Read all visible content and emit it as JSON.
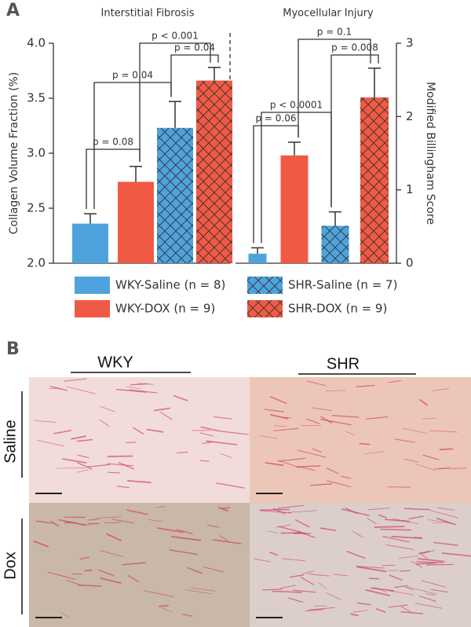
{
  "panel_labels": [
    "A",
    "B"
  ],
  "chart_data": [
    {
      "type": "bar",
      "title": "Interstitial Fibrosis",
      "y_label": "Collagen Volume Fraction (%)",
      "axis_side": "left",
      "categories": [
        "WKY-Saline",
        "WKY-DOX",
        "SHR-Saline",
        "SHR-DOX"
      ],
      "values": [
        2.36,
        2.74,
        3.23,
        3.66
      ],
      "errors": [
        0.09,
        0.14,
        0.24,
        0.12
      ],
      "colors": [
        "#4fa3dc",
        "#f05a45",
        "#4fa3dc",
        "#f05a45"
      ],
      "hatch": [
        false,
        false,
        true,
        true
      ],
      "ylim": [
        2,
        4
      ],
      "yticks": [
        {
          "value": 2,
          "label": "2.0"
        },
        {
          "value": 2.5,
          "label": "2.5"
        },
        {
          "value": 3,
          "label": "3.0"
        },
        {
          "value": 3.5,
          "label": "3.5"
        },
        {
          "value": 4,
          "label": "4.0"
        }
      ],
      "annotations": [
        "p = 0.08",
        "p = 0.04",
        "p = 0.04",
        "p < 0.001"
      ]
    },
    {
      "type": "bar",
      "title": "Myocellular Injury",
      "y_label": "Modified Billingham Score",
      "axis_side": "right",
      "categories": [
        "WKY-Saline",
        "WKY-DOX",
        "SHR-Saline",
        "SHR-DOX"
      ],
      "values": [
        0.13,
        1.47,
        0.51,
        2.26
      ],
      "errors": [
        0.08,
        0.18,
        0.19,
        0.4
      ],
      "colors": [
        "#4fa3dc",
        "#f05a45",
        "#4fa3dc",
        "#f05a45"
      ],
      "hatch": [
        false,
        false,
        true,
        true
      ],
      "ylim": [
        0,
        3
      ],
      "yticks": [
        0,
        1,
        2,
        3
      ],
      "annotations": [
        "p = 0.06",
        "p < 0.0001",
        "p = 0.008",
        "p = 0.1"
      ]
    }
  ],
  "legend": [
    {
      "name": "WKY-Saline (n = 8)",
      "color": "#4fa3dc",
      "hatch": false
    },
    {
      "name": "SHR-Saline (n = 7)",
      "color": "#4fa3dc",
      "hatch": true
    },
    {
      "name": "WKY-DOX (n = 9)",
      "color": "#f05a45",
      "hatch": false
    },
    {
      "name": "SHR-DOX (n = 9)",
      "color": "#f05a45",
      "hatch": true
    }
  ],
  "panel_b": {
    "columns": [
      "WKY",
      "SHR"
    ],
    "rows": [
      "Saline",
      "Dox"
    ]
  }
}
